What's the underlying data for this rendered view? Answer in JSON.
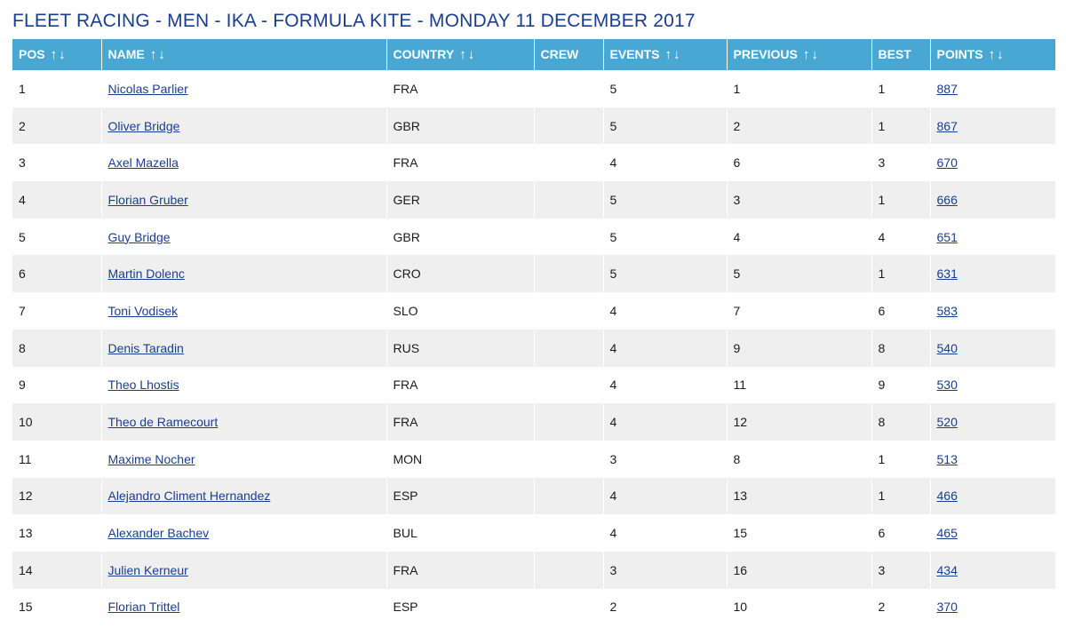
{
  "title": "FLEET RACING - MEN - IKA - FORMULA KITE - MONDAY 11 DECEMBER 2017",
  "headers": {
    "pos": "POS",
    "name": "NAME",
    "country": "COUNTRY",
    "crew": "CREW",
    "events": "EVENTS",
    "previous": "PREVIOUS",
    "best": "BEST",
    "points": "POINTS",
    "sort_arrows": "↑↓"
  },
  "rows": [
    {
      "pos": "1",
      "name": "Nicolas Parlier",
      "country": "FRA",
      "crew": "",
      "events": "5",
      "previous": "1",
      "best": "1",
      "points": "887"
    },
    {
      "pos": "2",
      "name": "Oliver Bridge",
      "country": "GBR",
      "crew": "",
      "events": "5",
      "previous": "2",
      "best": "1",
      "points": "867"
    },
    {
      "pos": "3",
      "name": "Axel Mazella",
      "country": "FRA",
      "crew": "",
      "events": "4",
      "previous": "6",
      "best": "3",
      "points": "670"
    },
    {
      "pos": "4",
      "name": "Florian Gruber",
      "country": "GER",
      "crew": "",
      "events": "5",
      "previous": "3",
      "best": "1",
      "points": "666"
    },
    {
      "pos": "5",
      "name": "Guy Bridge",
      "country": "GBR",
      "crew": "",
      "events": "5",
      "previous": "4",
      "best": "4",
      "points": "651"
    },
    {
      "pos": "6",
      "name": "Martin Dolenc",
      "country": "CRO",
      "crew": "",
      "events": "5",
      "previous": "5",
      "best": "1",
      "points": "631"
    },
    {
      "pos": "7",
      "name": "Toni Vodisek",
      "country": "SLO",
      "crew": "",
      "events": "4",
      "previous": "7",
      "best": "6",
      "points": "583"
    },
    {
      "pos": "8",
      "name": "Denis Taradin",
      "country": "RUS",
      "crew": "",
      "events": "4",
      "previous": "9",
      "best": "8",
      "points": "540"
    },
    {
      "pos": "9",
      "name": "Theo Lhostis",
      "country": "FRA",
      "crew": "",
      "events": "4",
      "previous": "11",
      "best": "9",
      "points": "530"
    },
    {
      "pos": "10",
      "name": "Theo de Ramecourt",
      "country": "FRA",
      "crew": "",
      "events": "4",
      "previous": "12",
      "best": "8",
      "points": "520"
    },
    {
      "pos": "11",
      "name": "Maxime Nocher",
      "country": "MON",
      "crew": "",
      "events": "3",
      "previous": "8",
      "best": "1",
      "points": "513"
    },
    {
      "pos": "12",
      "name": "Alejandro Climent Hernandez",
      "country": "ESP",
      "crew": "",
      "events": "4",
      "previous": "13",
      "best": "1",
      "points": "466"
    },
    {
      "pos": "13",
      "name": "Alexander Bachev",
      "country": "BUL",
      "crew": "",
      "events": "4",
      "previous": "15",
      "best": "6",
      "points": "465"
    },
    {
      "pos": "14",
      "name": "Julien Kerneur",
      "country": "FRA",
      "crew": "",
      "events": "3",
      "previous": "16",
      "best": "3",
      "points": "434"
    },
    {
      "pos": "15",
      "name": "Florian Trittel",
      "country": "ESP",
      "crew": "",
      "events": "2",
      "previous": "10",
      "best": "2",
      "points": "370"
    }
  ],
  "colors": {
    "header_bg": "#49a8d3",
    "title": "#1a3d8f",
    "link": "#1a3d8f",
    "stripe": "#efefef"
  }
}
